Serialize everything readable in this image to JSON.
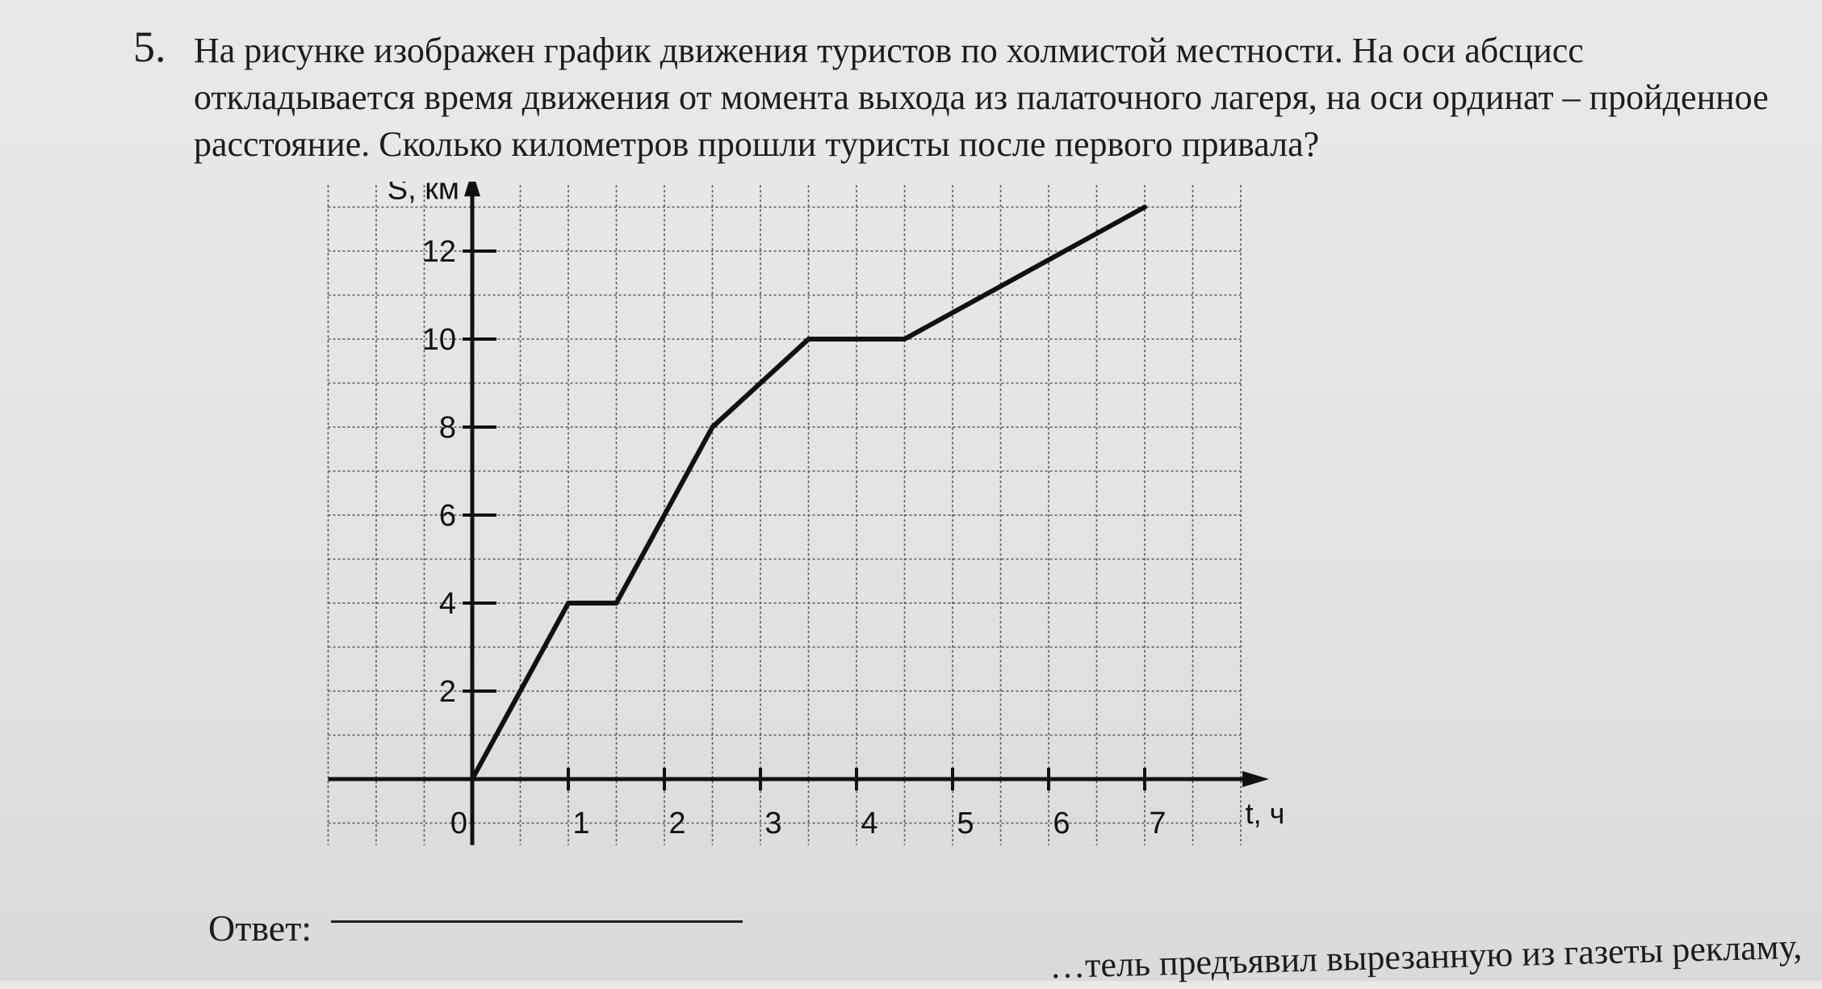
{
  "problem": {
    "number": "5.",
    "lines": [
      "На рисунке изображен график движения туристов по холмистой местности. На оси абсцисс",
      "откладывается время движения от момента выхода из палаточного лагеря, на оси ординат – пройденное",
      "расстояние. Сколько километров прошли туристы после первого привала?"
    ]
  },
  "chart_data": {
    "type": "line",
    "ylabel": "S, км",
    "xlabel": "t, ч",
    "origin_label": "0",
    "xlim": [
      0,
      8
    ],
    "ylim": [
      0,
      13
    ],
    "x_ticks": [
      "1",
      "2",
      "3",
      "4",
      "5",
      "6",
      "7"
    ],
    "y_ticks": [
      "2",
      "4",
      "6",
      "8",
      "10",
      "12"
    ],
    "grid": true,
    "series": [
      {
        "x": [
          0,
          1,
          1.5,
          2.5,
          3.5,
          4.5,
          7
        ],
        "y": [
          0,
          4,
          4,
          8,
          10,
          10,
          13
        ]
      }
    ]
  },
  "answer": {
    "label": "Ответ:"
  },
  "next_problem_fragment": "…тель предъявил вырезанную из газеты рекламу,"
}
